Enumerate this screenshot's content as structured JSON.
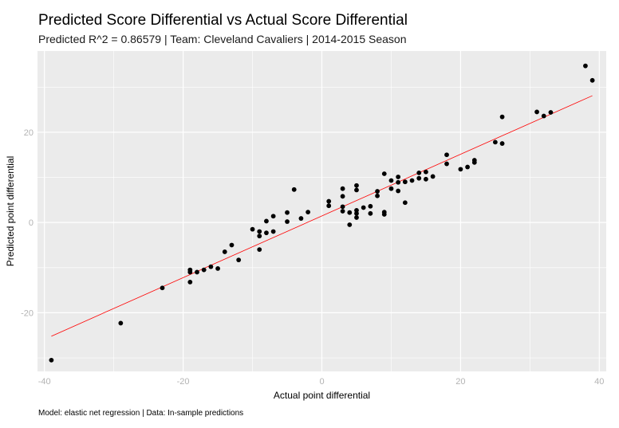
{
  "chart_data": {
    "type": "scatter",
    "title": "Predicted Score Differential vs Actual Score Differential",
    "subtitle": "Predicted R^2 = 0.86579 | Team: Cleveland Cavaliers | 2014-2015 Season",
    "xlabel": "Actual point differential",
    "ylabel": "Predicted point differential",
    "caption": "Model: elastic net regression | Data: In-sample predictions",
    "xlim": [
      -41,
      41
    ],
    "ylim": [
      -33,
      38
    ],
    "x_ticks": [
      -40,
      -20,
      0,
      20,
      40
    ],
    "y_ticks": [
      -20,
      0,
      20
    ],
    "x_tick_labels": [
      "-40",
      "-20",
      "0",
      "20",
      "40"
    ],
    "y_tick_labels": [
      "-20",
      "0",
      "20"
    ],
    "grid": true,
    "colors": {
      "panel_bg": "#ebebeb",
      "grid": "#ffffff",
      "points": "#000000",
      "fit_line": "#ff0000",
      "tick_label": "#b3b3b3"
    },
    "fit_line": {
      "x": [
        -39,
        39
      ],
      "y": [
        -25.2,
        28.1
      ]
    },
    "points": [
      {
        "x": -39,
        "y": -30.5
      },
      {
        "x": -29,
        "y": -22.3
      },
      {
        "x": -23,
        "y": -14.5
      },
      {
        "x": -19,
        "y": -10.5
      },
      {
        "x": -19,
        "y": -11.0
      },
      {
        "x": -19,
        "y": -13.2
      },
      {
        "x": -18,
        "y": -11.0
      },
      {
        "x": -17,
        "y": -10.5
      },
      {
        "x": -16,
        "y": -9.8
      },
      {
        "x": -15,
        "y": -10.2
      },
      {
        "x": -14,
        "y": -6.5
      },
      {
        "x": -13,
        "y": -5.0
      },
      {
        "x": -12,
        "y": -8.3
      },
      {
        "x": -10,
        "y": -1.5
      },
      {
        "x": -9,
        "y": -2.0
      },
      {
        "x": -9,
        "y": -3.0
      },
      {
        "x": -9,
        "y": -6.0
      },
      {
        "x": -8,
        "y": 0.3
      },
      {
        "x": -8,
        "y": -2.3
      },
      {
        "x": -7,
        "y": 1.4
      },
      {
        "x": -7,
        "y": -2.0
      },
      {
        "x": -5,
        "y": 2.2
      },
      {
        "x": -5,
        "y": 0.2
      },
      {
        "x": -4,
        "y": 7.3
      },
      {
        "x": -3,
        "y": 0.9
      },
      {
        "x": -2,
        "y": 2.3
      },
      {
        "x": 1,
        "y": 4.7
      },
      {
        "x": 1,
        "y": 3.7
      },
      {
        "x": 3,
        "y": 7.5
      },
      {
        "x": 3,
        "y": 5.8
      },
      {
        "x": 3,
        "y": 3.5
      },
      {
        "x": 3,
        "y": 2.5
      },
      {
        "x": 4,
        "y": 2.2
      },
      {
        "x": 4,
        "y": -0.5
      },
      {
        "x": 5,
        "y": 8.2
      },
      {
        "x": 5,
        "y": 7.2
      },
      {
        "x": 5,
        "y": 2.7
      },
      {
        "x": 5,
        "y": 2.0
      },
      {
        "x": 5,
        "y": 1.1
      },
      {
        "x": 6,
        "y": 3.3
      },
      {
        "x": 7,
        "y": 3.6
      },
      {
        "x": 7,
        "y": 2.0
      },
      {
        "x": 8,
        "y": 6.9
      },
      {
        "x": 8,
        "y": 5.9
      },
      {
        "x": 9,
        "y": 10.8
      },
      {
        "x": 9,
        "y": 2.3
      },
      {
        "x": 9,
        "y": 1.8
      },
      {
        "x": 10,
        "y": 9.3
      },
      {
        "x": 10,
        "y": 7.5
      },
      {
        "x": 11,
        "y": 10.1
      },
      {
        "x": 11,
        "y": 8.9
      },
      {
        "x": 11,
        "y": 7.0
      },
      {
        "x": 12,
        "y": 9.0
      },
      {
        "x": 12,
        "y": 4.4
      },
      {
        "x": 13,
        "y": 9.3
      },
      {
        "x": 14,
        "y": 11.0
      },
      {
        "x": 14,
        "y": 9.8
      },
      {
        "x": 15,
        "y": 11.2
      },
      {
        "x": 15,
        "y": 9.6
      },
      {
        "x": 16,
        "y": 10.2
      },
      {
        "x": 18,
        "y": 15.0
      },
      {
        "x": 18,
        "y": 13.0
      },
      {
        "x": 20,
        "y": 11.8
      },
      {
        "x": 21,
        "y": 12.3
      },
      {
        "x": 22,
        "y": 13.8
      },
      {
        "x": 22,
        "y": 13.3
      },
      {
        "x": 25,
        "y": 17.8
      },
      {
        "x": 26,
        "y": 23.4
      },
      {
        "x": 26,
        "y": 17.5
      },
      {
        "x": 31,
        "y": 24.5
      },
      {
        "x": 32,
        "y": 23.6
      },
      {
        "x": 33,
        "y": 24.4
      },
      {
        "x": 38,
        "y": 34.7
      },
      {
        "x": 39,
        "y": 31.5
      }
    ]
  }
}
